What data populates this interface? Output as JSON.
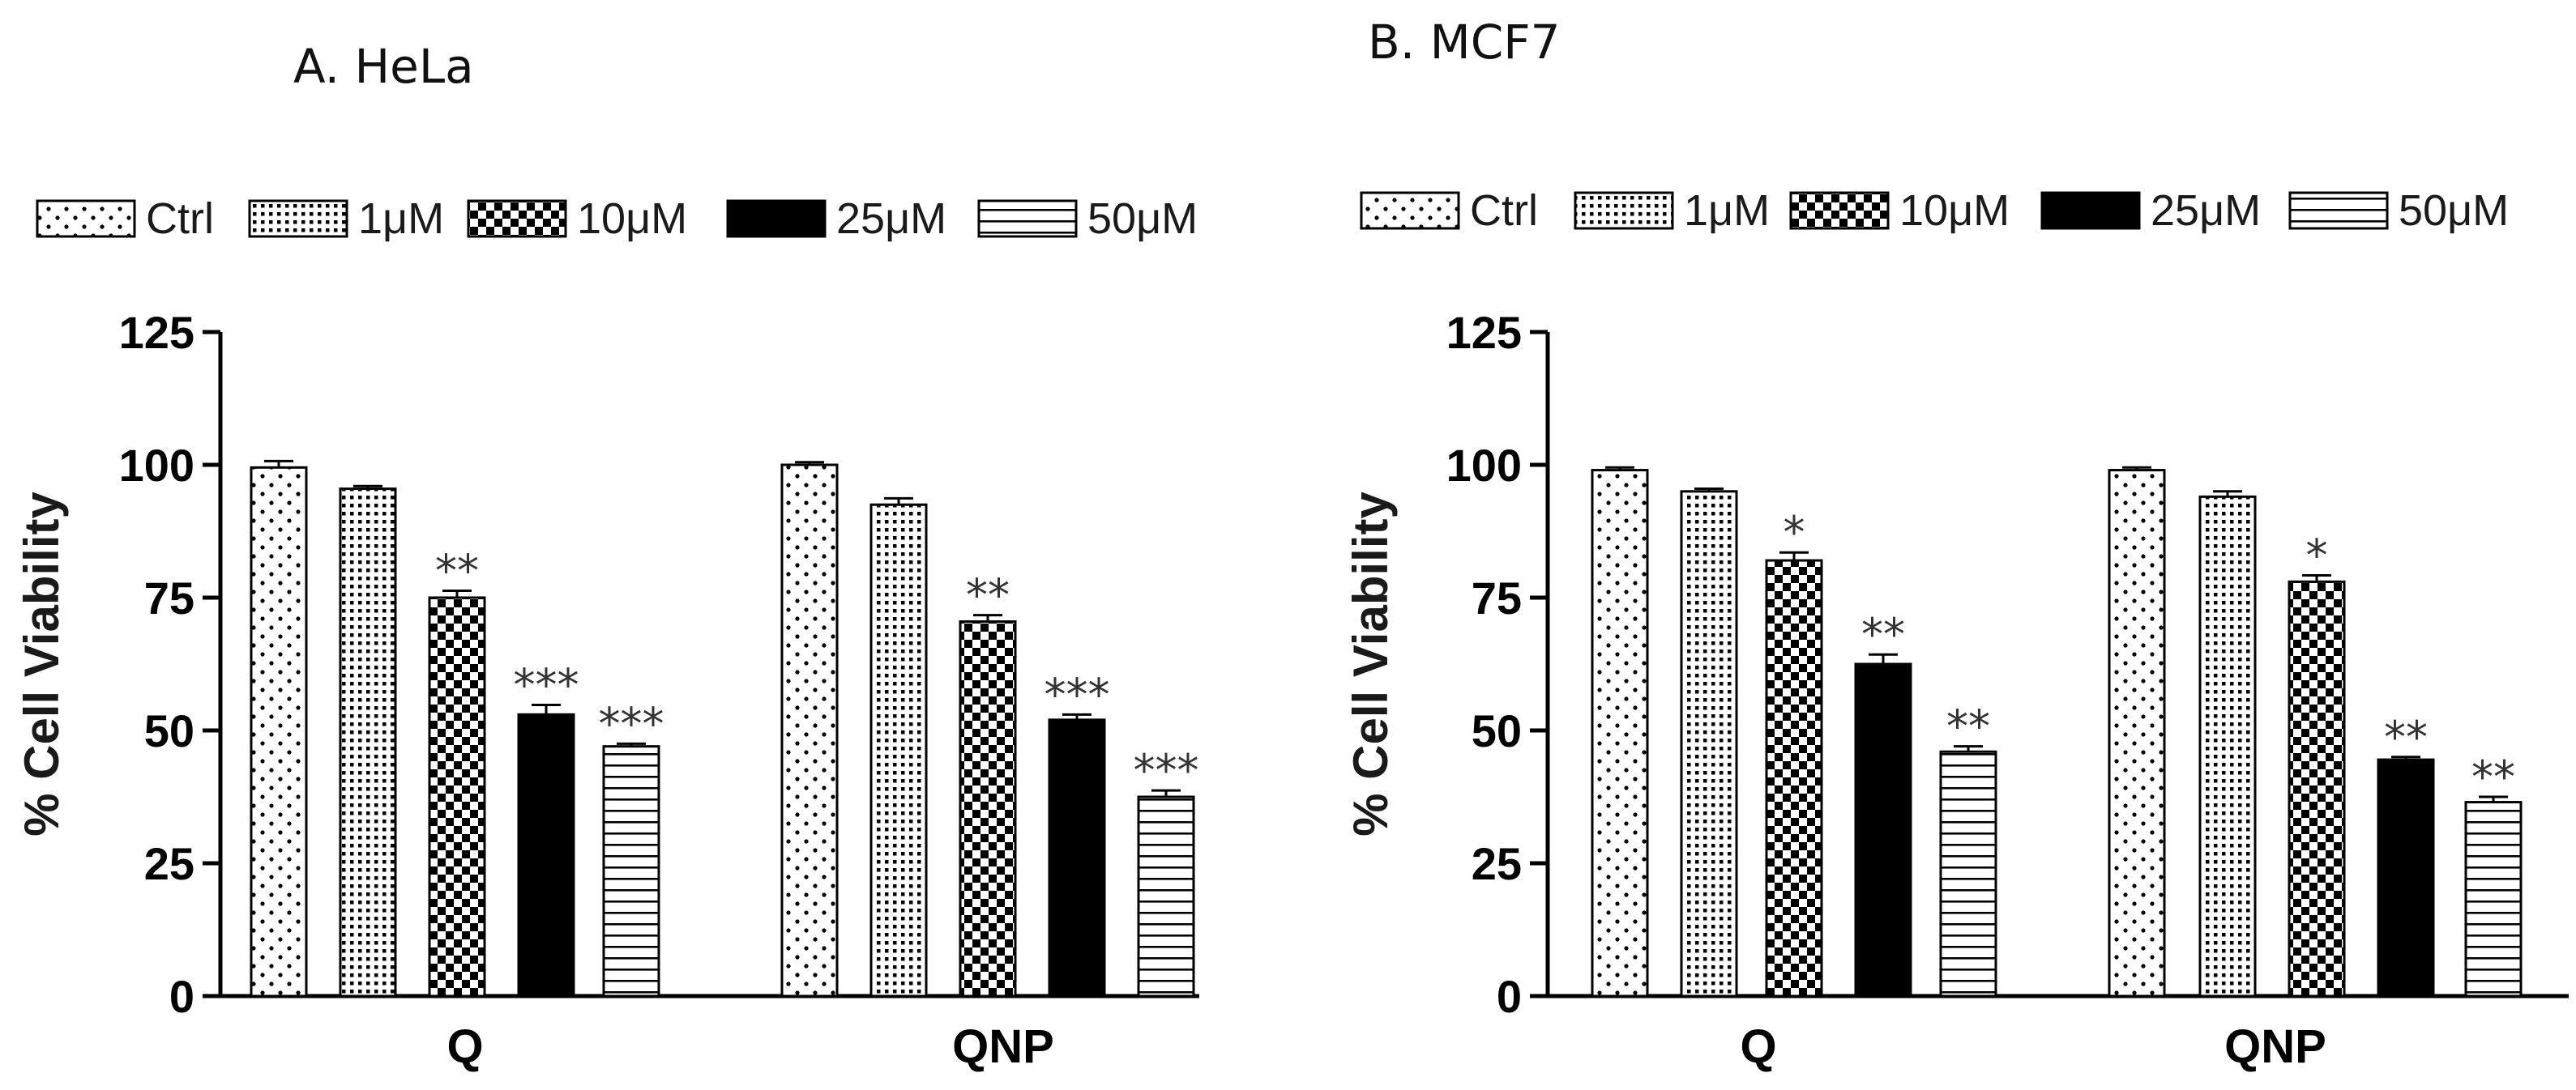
{
  "figure": {
    "panel_a_title": "A. HeLa",
    "panel_b_title": "B. MCF7"
  },
  "colors": {
    "axis": "#000000",
    "text": "#1a1a1a",
    "bar_stroke": "#000000",
    "fill_solid": "#000000",
    "background": "#ffffff"
  },
  "legend": [
    {
      "label": "Ctrl",
      "pattern": "sparse-dots"
    },
    {
      "label": "1μM",
      "pattern": "dense-dots"
    },
    {
      "label": "10μM",
      "pattern": "checker"
    },
    {
      "label": "25μM",
      "pattern": "solid"
    },
    {
      "label": "50μM",
      "pattern": "h-lines"
    }
  ],
  "chart_data": [
    {
      "type": "bar",
      "title": "A. HeLa",
      "categories": [
        "Q",
        "QNP"
      ],
      "ylabel": "% Cell Viability",
      "xlabel": "",
      "ylim": [
        0,
        125
      ],
      "yticks": [
        0,
        25,
        50,
        75,
        100,
        125
      ],
      "grid": false,
      "legend_position": "top",
      "series": [
        {
          "name": "Ctrl",
          "values": [
            99.5,
            100
          ],
          "errors": [
            1.2,
            0.5
          ],
          "annotations": [
            "",
            ""
          ]
        },
        {
          "name": "1μM",
          "values": [
            95.5,
            92.5
          ],
          "errors": [
            0.5,
            1.2
          ],
          "annotations": [
            "",
            ""
          ]
        },
        {
          "name": "10μM",
          "values": [
            75,
            70.5
          ],
          "errors": [
            1.3,
            1.2
          ],
          "annotations": [
            "**",
            "**"
          ]
        },
        {
          "name": "25μM",
          "values": [
            53,
            52
          ],
          "errors": [
            1.8,
            1.0
          ],
          "annotations": [
            "***",
            "***"
          ]
        },
        {
          "name": "50μM",
          "values": [
            47,
            37.5
          ],
          "errors": [
            0.5,
            1.2
          ],
          "annotations": [
            "***",
            "***"
          ]
        }
      ]
    },
    {
      "type": "bar",
      "title": "B. MCF7",
      "categories": [
        "Q",
        "QNP"
      ],
      "ylabel": "% Cell Viability",
      "xlabel": "",
      "ylim": [
        0,
        125
      ],
      "yticks": [
        0,
        25,
        50,
        75,
        100,
        125
      ],
      "grid": false,
      "legend_position": "top",
      "series": [
        {
          "name": "Ctrl",
          "values": [
            99,
            99
          ],
          "errors": [
            0.5,
            0.5
          ],
          "annotations": [
            "",
            ""
          ]
        },
        {
          "name": "1μM",
          "values": [
            95,
            94
          ],
          "errors": [
            0.5,
            1.0
          ],
          "annotations": [
            "",
            ""
          ]
        },
        {
          "name": "10μM",
          "values": [
            82,
            78
          ],
          "errors": [
            1.5,
            1.2
          ],
          "annotations": [
            "*",
            "*"
          ]
        },
        {
          "name": "25μM",
          "values": [
            62.5,
            44.5
          ],
          "errors": [
            1.8,
            0.5
          ],
          "annotations": [
            "**",
            "**"
          ]
        },
        {
          "name": "50μM",
          "values": [
            46,
            36.5
          ],
          "errors": [
            1.0,
            1.0
          ],
          "annotations": [
            "**",
            "**"
          ]
        }
      ]
    }
  ]
}
